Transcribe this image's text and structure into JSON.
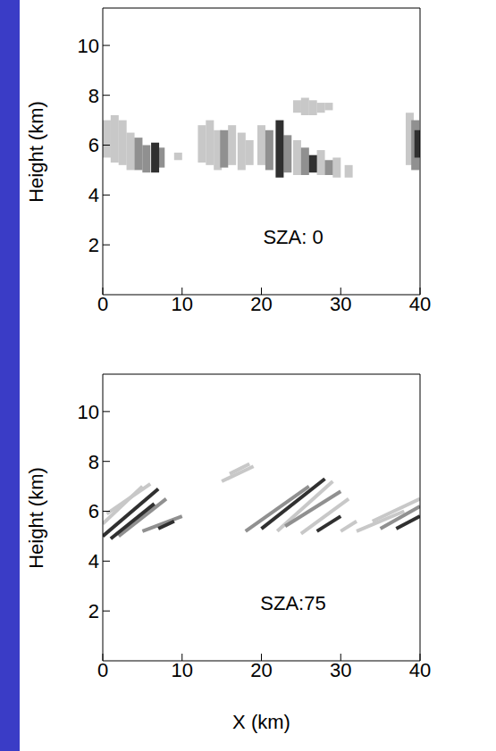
{
  "chart_data": [
    {
      "type": "line",
      "annotation": "SZA: 0",
      "y_label": "Height (km)",
      "xlim": [
        0,
        40
      ],
      "xticks": [
        0,
        10,
        20,
        30,
        40
      ],
      "ylim": [
        0,
        11.5
      ],
      "yticks": [
        2,
        4,
        6,
        8,
        10
      ],
      "grid": false,
      "series": [
        {
          "color": "#c8c8c8",
          "x": [
            0.5,
            0.5
          ],
          "values": [
            5.5,
            7.0
          ]
        },
        {
          "color": "#c8c8c8",
          "x": [
            1.5,
            1.5
          ],
          "values": [
            5.3,
            7.2
          ]
        },
        {
          "color": "#c8c8c8",
          "x": [
            2.5,
            2.5
          ],
          "values": [
            5.2,
            7.0
          ]
        },
        {
          "color": "#c8c8c8",
          "x": [
            3.5,
            3.5
          ],
          "values": [
            5.0,
            6.5
          ]
        },
        {
          "color": "#909090",
          "x": [
            4.5,
            4.5
          ],
          "values": [
            5.0,
            6.3
          ]
        },
        {
          "color": "#909090",
          "x": [
            5.5,
            5.5
          ],
          "values": [
            4.9,
            6.0
          ]
        },
        {
          "color": "#909090",
          "x": [
            7.3,
            7.3
          ],
          "values": [
            5.1,
            5.9
          ]
        },
        {
          "color": "#303030",
          "x": [
            6.6,
            6.6
          ],
          "values": [
            4.9,
            6.1
          ]
        },
        {
          "color": "#c8c8c8",
          "x": [
            9.5,
            9.5
          ],
          "values": [
            5.4,
            5.7
          ]
        },
        {
          "color": "#c8c8c8",
          "x": [
            12.5,
            12.5
          ],
          "values": [
            5.3,
            6.8
          ]
        },
        {
          "color": "#c8c8c8",
          "x": [
            13.5,
            13.5
          ],
          "values": [
            5.2,
            7.0
          ]
        },
        {
          "color": "#c8c8c8",
          "x": [
            14.5,
            14.5
          ],
          "values": [
            5.0,
            6.6
          ]
        },
        {
          "color": "#c8c8c8",
          "x": [
            16.3,
            16.3
          ],
          "values": [
            5.2,
            6.8
          ]
        },
        {
          "color": "#c8c8c8",
          "x": [
            17.5,
            17.5
          ],
          "values": [
            5.0,
            6.5
          ]
        },
        {
          "color": "#c8c8c8",
          "x": [
            18.5,
            18.5
          ],
          "values": [
            5.2,
            6.2
          ]
        },
        {
          "color": "#909090",
          "x": [
            15.3,
            15.3
          ],
          "values": [
            5.1,
            6.6
          ]
        },
        {
          "color": "#c8c8c8",
          "x": [
            20,
            20
          ],
          "values": [
            5.2,
            6.8
          ]
        },
        {
          "color": "#c8c8c8",
          "x": [
            24.5,
            24.5
          ],
          "values": [
            4.8,
            6.2
          ]
        },
        {
          "color": "#c8c8c8",
          "x": [
            27.5,
            27.5
          ],
          "values": [
            4.8,
            5.8
          ]
        },
        {
          "color": "#c8c8c8",
          "x": [
            29.5,
            29.5
          ],
          "values": [
            4.7,
            5.5
          ]
        },
        {
          "color": "#c8c8c8",
          "x": [
            31,
            31
          ],
          "values": [
            4.7,
            5.2
          ]
        },
        {
          "color": "#909090",
          "x": [
            21,
            21
          ],
          "values": [
            5.0,
            6.6
          ]
        },
        {
          "color": "#909090",
          "x": [
            23.3,
            23.3
          ],
          "values": [
            4.9,
            6.4
          ]
        },
        {
          "color": "#909090",
          "x": [
            25.5,
            25.5
          ],
          "values": [
            4.8,
            5.9
          ]
        },
        {
          "color": "#909090",
          "x": [
            28.5,
            28.5
          ],
          "values": [
            4.8,
            5.4
          ]
        },
        {
          "color": "#303030",
          "x": [
            22.3,
            22.3
          ],
          "values": [
            4.7,
            7.0
          ]
        },
        {
          "color": "#303030",
          "x": [
            26.5,
            26.5
          ],
          "values": [
            4.9,
            5.6
          ]
        },
        {
          "color": "#c8c8c8",
          "x": [
            24.5,
            24.5
          ],
          "values": [
            7.3,
            7.8
          ]
        },
        {
          "color": "#c8c8c8",
          "x": [
            25.5,
            25.5
          ],
          "values": [
            7.2,
            7.9
          ]
        },
        {
          "color": "#c8c8c8",
          "x": [
            26.5,
            26.5
          ],
          "values": [
            7.2,
            7.8
          ]
        },
        {
          "color": "#c8c8c8",
          "x": [
            27.5,
            27.5
          ],
          "values": [
            7.3,
            7.7
          ]
        },
        {
          "color": "#c8c8c8",
          "x": [
            28.5,
            28.5
          ],
          "values": [
            7.4,
            7.7
          ]
        },
        {
          "color": "#c8c8c8",
          "x": [
            38.7,
            38.7
          ],
          "values": [
            5.2,
            7.3
          ]
        },
        {
          "color": "#909090",
          "x": [
            39.4,
            39.4
          ],
          "values": [
            5.0,
            7.0
          ]
        },
        {
          "color": "#303030",
          "x": [
            39.8,
            39.8
          ],
          "values": [
            5.5,
            6.6
          ]
        }
      ]
    },
    {
      "type": "line",
      "annotation": "SZA:75",
      "x_label": "X (km)",
      "y_label": "Height (km)",
      "xlim": [
        0,
        40
      ],
      "xticks": [
        0,
        10,
        20,
        30,
        40
      ],
      "ylim": [
        0,
        11.5
      ],
      "yticks": [
        2,
        4,
        6,
        8,
        10
      ],
      "grid": false,
      "series": [
        {
          "color": "#c8c8c8",
          "x": [
            0,
            5
          ],
          "values": [
            5.5,
            7.0
          ]
        },
        {
          "color": "#c8c8c8",
          "x": [
            0.5,
            6
          ],
          "values": [
            5.9,
            7.1
          ]
        },
        {
          "color": "#909090",
          "x": [
            2,
            8
          ],
          "values": [
            5.0,
            6.5
          ]
        },
        {
          "color": "#909090",
          "x": [
            5,
            10
          ],
          "values": [
            5.2,
            5.8
          ]
        },
        {
          "color": "#303030",
          "x": [
            0,
            7
          ],
          "values": [
            5.0,
            6.9
          ]
        },
        {
          "color": "#303030",
          "x": [
            1,
            6.5
          ],
          "values": [
            4.9,
            6.3
          ]
        },
        {
          "color": "#303030",
          "x": [
            7,
            9
          ],
          "values": [
            5.3,
            5.6
          ]
        },
        {
          "color": "#c8c8c8",
          "x": [
            15,
            19
          ],
          "values": [
            7.2,
            7.8
          ]
        },
        {
          "color": "#c8c8c8",
          "x": [
            16,
            18.5
          ],
          "values": [
            7.5,
            7.9
          ]
        },
        {
          "color": "#c8c8c8",
          "x": [
            22,
            29
          ],
          "values": [
            5.2,
            7.2
          ]
        },
        {
          "color": "#c8c8c8",
          "x": [
            25,
            31
          ],
          "values": [
            5.1,
            6.5
          ]
        },
        {
          "color": "#c8c8c8",
          "x": [
            30,
            32
          ],
          "values": [
            5.2,
            5.6
          ]
        },
        {
          "color": "#909090",
          "x": [
            18,
            26
          ],
          "values": [
            5.2,
            7.0
          ]
        },
        {
          "color": "#909090",
          "x": [
            23,
            30
          ],
          "values": [
            5.4,
            6.8
          ]
        },
        {
          "color": "#303030",
          "x": [
            20,
            28
          ],
          "values": [
            5.3,
            7.3
          ]
        },
        {
          "color": "#303030",
          "x": [
            27,
            30
          ],
          "values": [
            5.2,
            5.8
          ]
        },
        {
          "color": "#c8c8c8",
          "x": [
            32,
            38
          ],
          "values": [
            5.2,
            6.0
          ]
        },
        {
          "color": "#c8c8c8",
          "x": [
            34,
            40
          ],
          "values": [
            5.6,
            6.5
          ]
        },
        {
          "color": "#909090",
          "x": [
            35,
            40
          ],
          "values": [
            5.3,
            6.2
          ]
        },
        {
          "color": "#303030",
          "x": [
            37,
            40
          ],
          "values": [
            5.3,
            5.8
          ]
        }
      ]
    }
  ]
}
